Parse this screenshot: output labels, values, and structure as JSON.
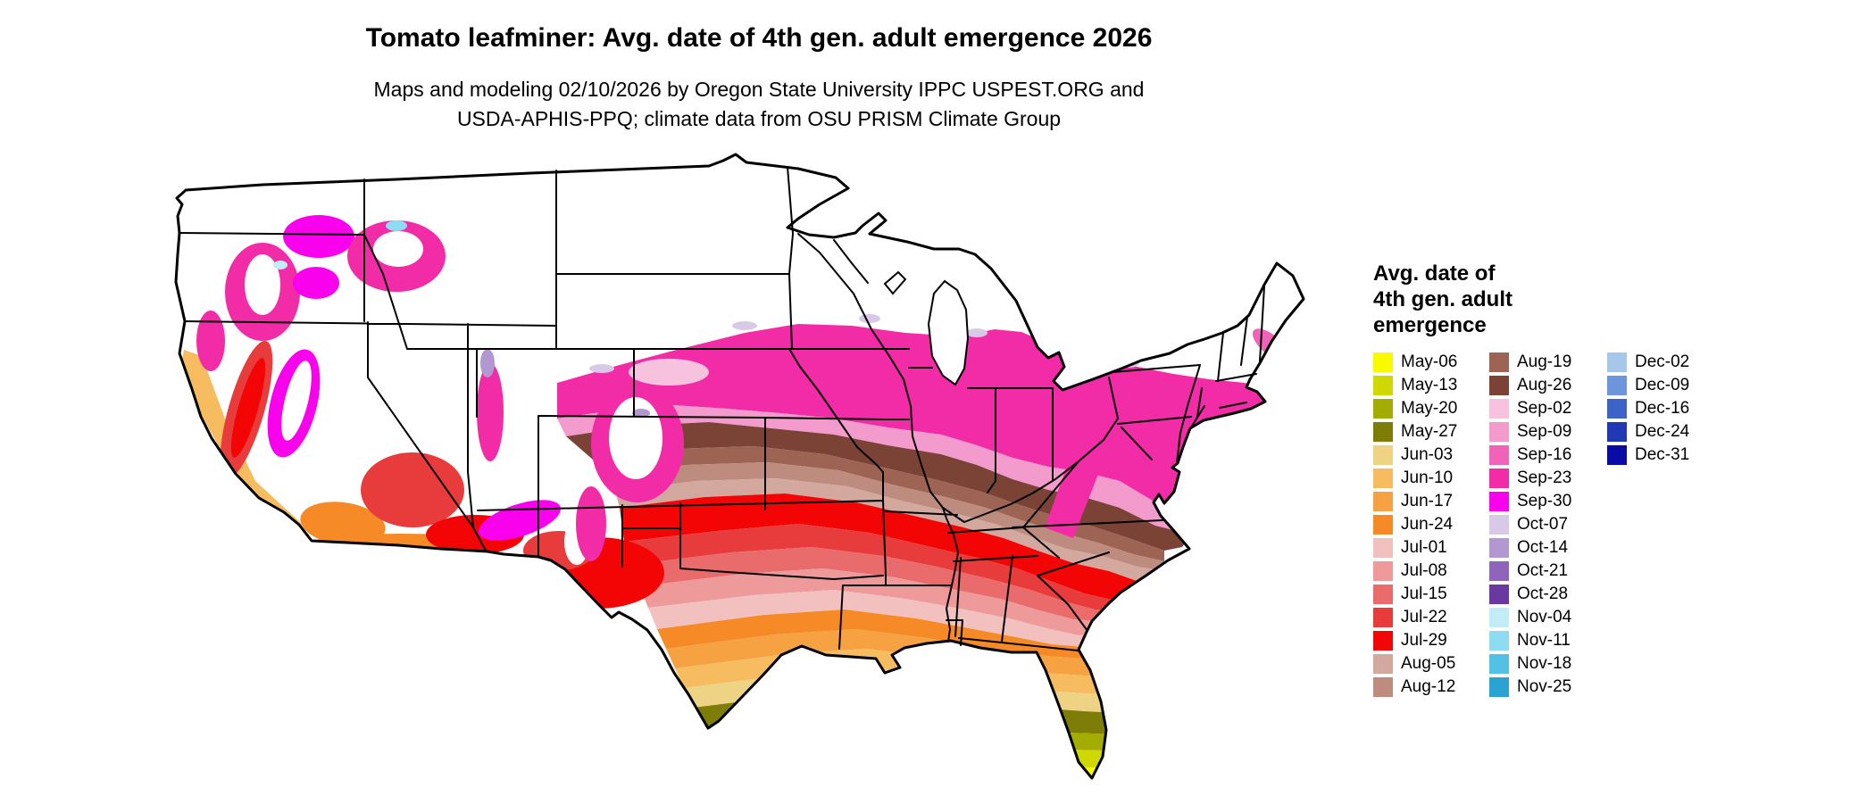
{
  "header": {
    "title": "Tomato leafminer: Avg. date of 4th gen. adult emergence 2026",
    "subtitle_line1": "Maps and modeling 02/10/2026 by Oregon State University IPPC USPEST.ORG and",
    "subtitle_line2": "USDA-APHIS-PPQ; climate data from OSU PRISM Climate Group"
  },
  "legend": {
    "title_line1": "Avg. date of",
    "title_line2": "4th gen. adult",
    "title_line3": "emergence",
    "columns": [
      [
        "May-06",
        "May-13",
        "May-20",
        "May-27",
        "Jun-03",
        "Jun-10",
        "Jun-17",
        "Jun-24",
        "Jul-01",
        "Jul-08",
        "Jul-15",
        "Jul-22",
        "Jul-29",
        "Aug-05",
        "Aug-12"
      ],
      [
        "Aug-19",
        "Aug-26",
        "Sep-02",
        "Sep-09",
        "Sep-16",
        "Sep-23",
        "Sep-30",
        "Oct-07",
        "Oct-14",
        "Oct-21",
        "Oct-28",
        "Nov-04",
        "Nov-11",
        "Nov-18",
        "Nov-25"
      ],
      [
        "Dec-02",
        "Dec-09",
        "Dec-16",
        "Dec-24",
        "Dec-31"
      ]
    ]
  },
  "palette": {
    "May-06": "#F9F900",
    "May-13": "#CFD900",
    "May-20": "#A3AC00",
    "May-27": "#7D7D07",
    "Jun-03": "#EFD385",
    "Jun-10": "#F6BC5F",
    "Jun-17": "#F6A243",
    "Jun-24": "#F68A26",
    "Jul-01": "#F3C0C0",
    "Jul-08": "#EE9A9A",
    "Jul-15": "#E96B6B",
    "Jul-22": "#E83C3C",
    "Jul-29": "#F40505",
    "Aug-05": "#D2A89F",
    "Aug-12": "#BD8C7F",
    "Aug-19": "#9D6353",
    "Aug-26": "#7B4336",
    "Sep-02": "#F6C2DD",
    "Sep-09": "#F39BCD",
    "Sep-16": "#F162B9",
    "Sep-23": "#F22BA7",
    "Sep-30": "#F901EC",
    "Oct-07": "#D8CAE7",
    "Oct-14": "#B297D1",
    "Oct-21": "#8E65BB",
    "Oct-28": "#6A399F",
    "Nov-04": "#C2EDF8",
    "Nov-11": "#8DDCF1",
    "Nov-18": "#53C1E3",
    "Nov-25": "#2AA3D3",
    "Dec-02": "#A5C7E9",
    "Dec-09": "#6D95DB",
    "Dec-16": "#3C63C7",
    "Dec-24": "#1E39B3",
    "Dec-31": "#0A0AA5"
  }
}
